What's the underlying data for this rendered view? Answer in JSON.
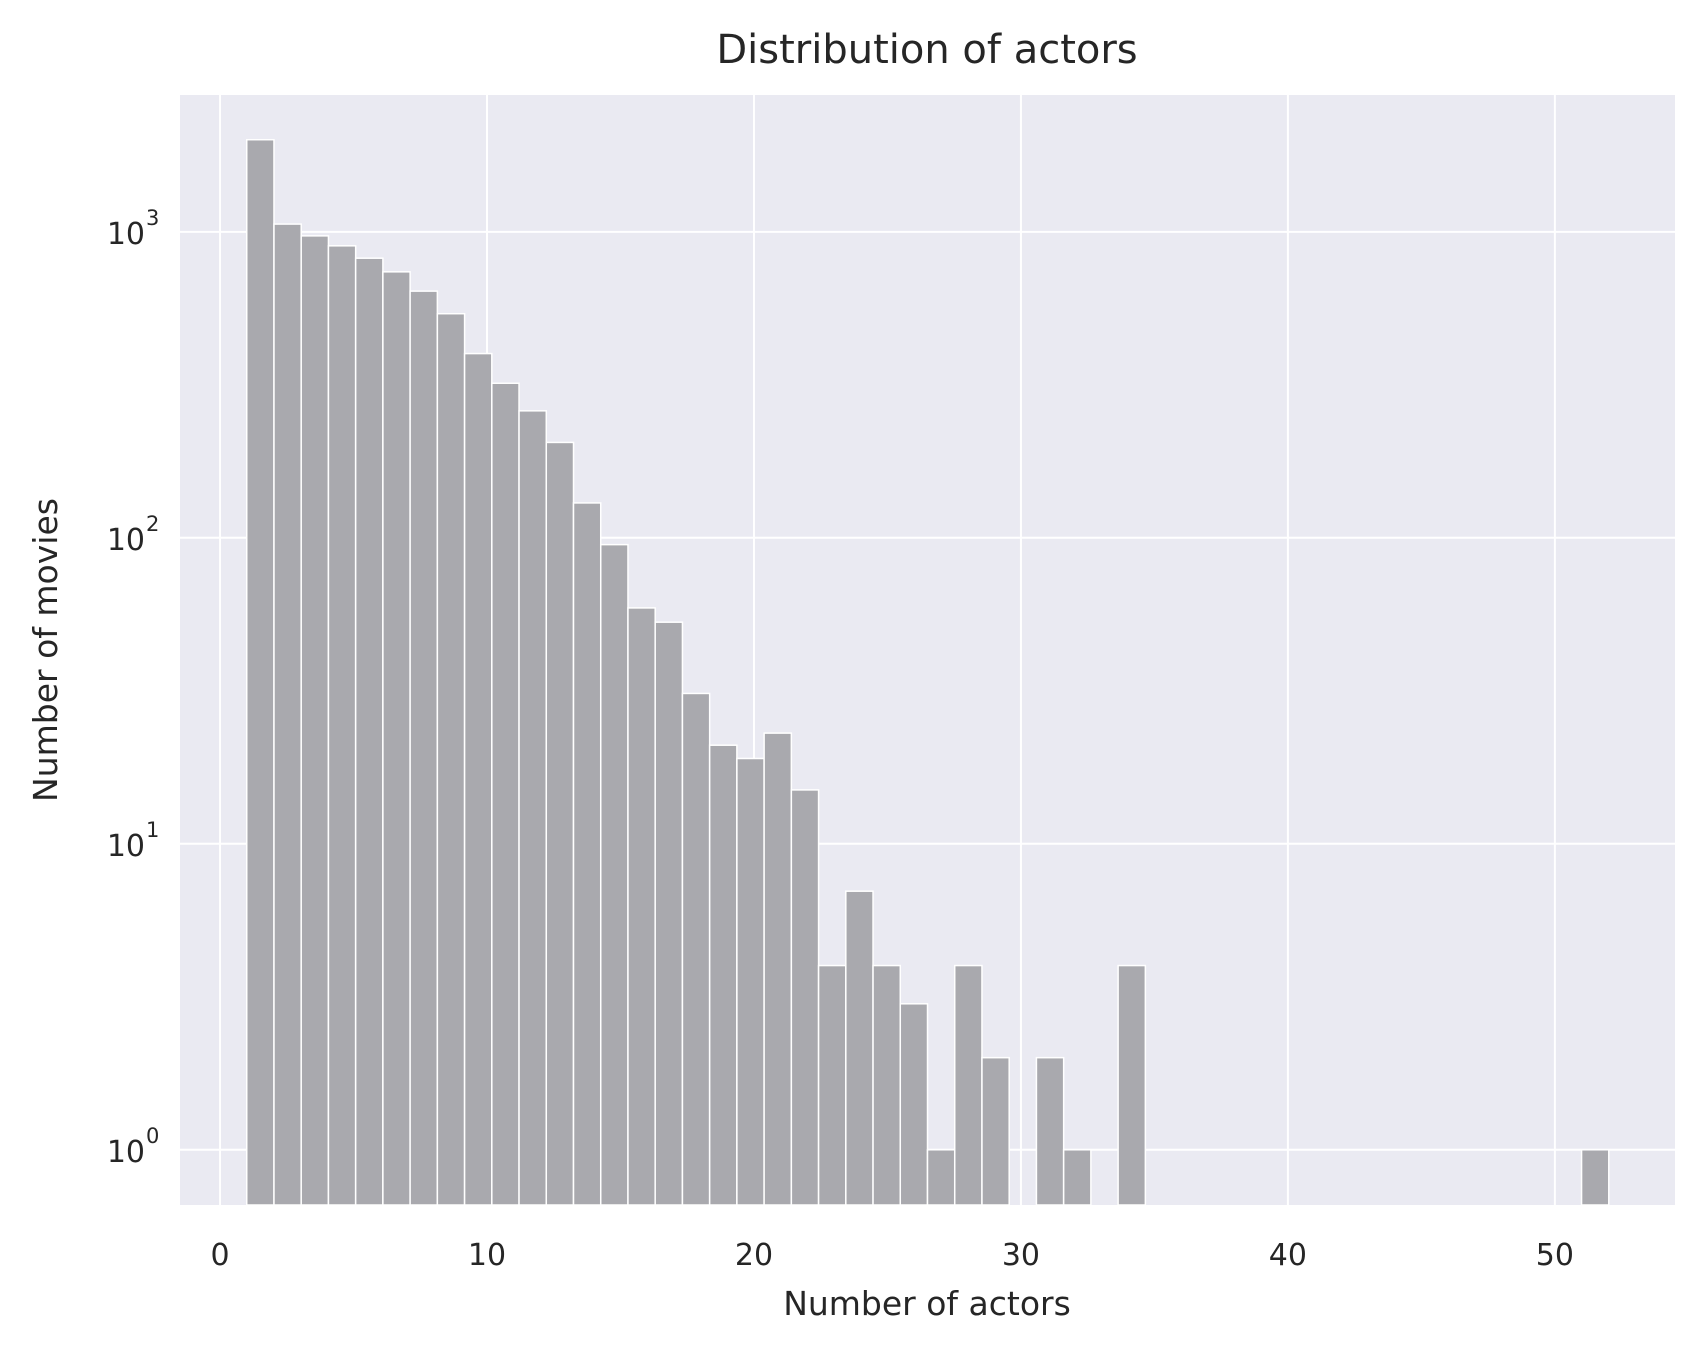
{
  "chart_data": {
    "type": "bar",
    "title": "Distribution of actors",
    "xlabel": "Number of actors",
    "ylabel": "Number of movies",
    "yscale": "log",
    "xlim": [
      -1.5,
      54.5
    ],
    "ylim": [
      0.66,
      2800
    ],
    "grid": true,
    "legend": "none",
    "colors": {
      "background": "#eaeaf2",
      "bar": "#a9a9ae",
      "grid": "#ffffff",
      "text": "#262626"
    },
    "x_ticks": [
      0,
      10,
      20,
      30,
      40,
      50
    ],
    "x_tick_labels": [
      "0",
      "10",
      "20",
      "30",
      "40",
      "50"
    ],
    "y_ticks": [
      1,
      10,
      100,
      1000
    ],
    "y_tick_bases": [
      "10",
      "10",
      "10",
      "10"
    ],
    "y_tick_exponents": [
      "0",
      "1",
      "2",
      "3"
    ],
    "bin_width": 1.02,
    "bins": [
      {
        "x": 1.0,
        "count": 2000
      },
      {
        "x": 2.02,
        "count": 1060
      },
      {
        "x": 3.04,
        "count": 970
      },
      {
        "x": 4.06,
        "count": 900
      },
      {
        "x": 5.08,
        "count": 820
      },
      {
        "x": 6.1,
        "count": 740
      },
      {
        "x": 7.12,
        "count": 640
      },
      {
        "x": 8.14,
        "count": 540
      },
      {
        "x": 9.16,
        "count": 400
      },
      {
        "x": 10.18,
        "count": 320
      },
      {
        "x": 11.2,
        "count": 260
      },
      {
        "x": 12.22,
        "count": 205
      },
      {
        "x": 13.24,
        "count": 130
      },
      {
        "x": 14.26,
        "count": 95
      },
      {
        "x": 15.28,
        "count": 59
      },
      {
        "x": 16.3,
        "count": 53
      },
      {
        "x": 17.32,
        "count": 31
      },
      {
        "x": 18.34,
        "count": 21
      },
      {
        "x": 19.36,
        "count": 19
      },
      {
        "x": 20.38,
        "count": 23
      },
      {
        "x": 21.4,
        "count": 15
      },
      {
        "x": 22.42,
        "count": 4
      },
      {
        "x": 23.44,
        "count": 7
      },
      {
        "x": 24.46,
        "count": 4
      },
      {
        "x": 25.48,
        "count": 3
      },
      {
        "x": 26.5,
        "count": 1
      },
      {
        "x": 27.52,
        "count": 4
      },
      {
        "x": 28.54,
        "count": 2
      },
      {
        "x": 30.58,
        "count": 2
      },
      {
        "x": 31.6,
        "count": 1
      },
      {
        "x": 33.64,
        "count": 4
      },
      {
        "x": 51.0,
        "count": 1
      }
    ]
  }
}
